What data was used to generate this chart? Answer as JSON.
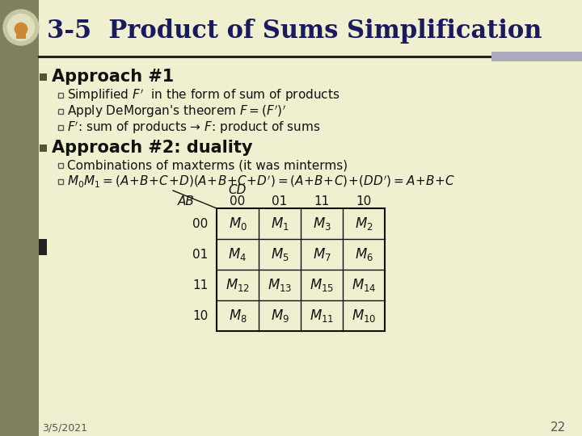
{
  "bg_color": "#f0f0d0",
  "left_bar_color": "#808060",
  "title_bg_color": "#f0f0d0",
  "title_text": "3-5  Product of Sums Simplification",
  "title_color": "#1a1a5e",
  "title_fontsize": 22,
  "header_line_color": "#222222",
  "header_right_color": "#9999aa",
  "bullet_n_color": "#555533",
  "approach1_heading": "Approach #1",
  "approach1_bullets": [
    "Simplified $F'$  in the form of sum of products",
    "Apply DeMorgan's theorem $F = (F')'$",
    "$F'$: sum of products → $F$: product of sums"
  ],
  "approach2_heading": "Approach #2: duality",
  "approach2_bullets": [
    "Combinations of maxterms (it was minterms)",
    "$M_0M_1 = (A\\!+\\!B\\!+\\!C\\!+\\!D)(A\\!+\\!B\\!+\\!C\\!+\\!D') = (A\\!+\\!B\\!+\\!C)\\!+\\!(DD') = A\\!+\\!B\\!+\\!C$"
  ],
  "table_col_headers": [
    "00",
    "01",
    "11",
    "10"
  ],
  "table_row_headers": [
    "00",
    "01",
    "11",
    "10"
  ],
  "table_cells": [
    [
      "$M_0$",
      "$M_1$",
      "$M_3$",
      "$M_2$"
    ],
    [
      "$M_4$",
      "$M_5$",
      "$M_7$",
      "$M_6$"
    ],
    [
      "$M_{12}$",
      "$M_{13}$",
      "$M_{15}$",
      "$M_{14}$"
    ],
    [
      "$M_8$",
      "$M_9$",
      "$M_{11}$",
      "$M_{10}$"
    ]
  ],
  "date_text": "3/5/2021",
  "page_num": "22",
  "footer_color": "#555555",
  "footer_fontsize": 9,
  "heading_fontsize": 15,
  "bullet_fontsize": 11,
  "table_fontsize": 11
}
